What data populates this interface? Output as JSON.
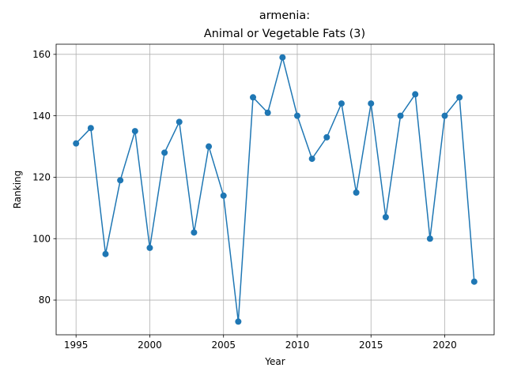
{
  "chart_data": {
    "type": "line",
    "title_line1": "armenia:",
    "title_line2": "Animal or Vegetable Fats (3)",
    "xlabel": "Year",
    "ylabel": "Ranking",
    "xlim": [
      1993.65,
      2023.35
    ],
    "ylim": [
      68.7,
      163.3
    ],
    "xticks": [
      1995,
      2000,
      2005,
      2010,
      2015,
      2020
    ],
    "yticks": [
      80,
      100,
      120,
      140,
      160
    ],
    "grid": true,
    "marker": "circle",
    "color": "#1f77b4",
    "x": [
      1995,
      1996,
      1997,
      1998,
      1999,
      2000,
      2001,
      2002,
      2003,
      2004,
      2005,
      2006,
      2007,
      2008,
      2009,
      2010,
      2011,
      2012,
      2013,
      2014,
      2015,
      2016,
      2017,
      2018,
      2019,
      2020,
      2021,
      2022
    ],
    "y": [
      131,
      136,
      95,
      119,
      135,
      97,
      128,
      138,
      102,
      130,
      114,
      73,
      146,
      141,
      159,
      140,
      126,
      133,
      144,
      115,
      144,
      107,
      140,
      147,
      100,
      140,
      146,
      86
    ]
  }
}
